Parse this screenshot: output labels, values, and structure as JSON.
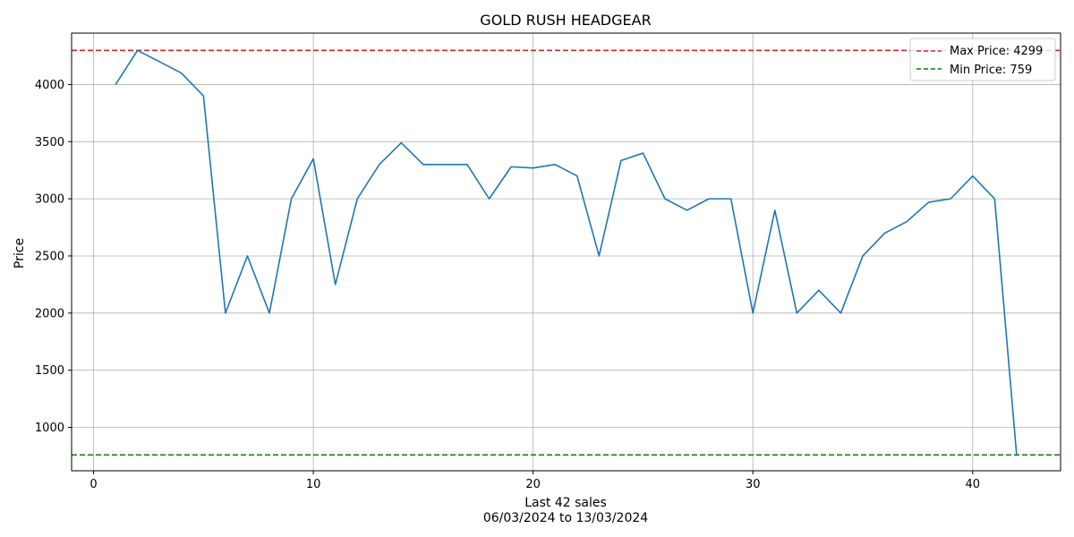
{
  "chart_data": {
    "type": "line",
    "title": "GOLD RUSH HEADGEAR",
    "xlabel": "Last 42 sales",
    "xlabel_sub": "06/03/2024 to 13/03/2024",
    "ylabel": "Price",
    "xlim": [
      -1,
      44
    ],
    "ylim": [
      620,
      4450
    ],
    "xticks": [
      0,
      10,
      20,
      30,
      40
    ],
    "yticks": [
      1000,
      1500,
      2000,
      2500,
      3000,
      3500,
      4000
    ],
    "grid": true,
    "legend_position": "top-right",
    "series": [
      {
        "color": "#1f77b4",
        "x": [
          1,
          2,
          3,
          4,
          5,
          6,
          7,
          8,
          9,
          10,
          11,
          12,
          13,
          14,
          15,
          16,
          17,
          18,
          19,
          20,
          21,
          22,
          23,
          24,
          25,
          26,
          27,
          28,
          29,
          30,
          31,
          32,
          33,
          34,
          35,
          36,
          37,
          38,
          39,
          40,
          41,
          42
        ],
        "values": [
          4000,
          4299,
          4200,
          4100,
          3900,
          2000,
          2500,
          2000,
          3000,
          3350,
          2250,
          3000,
          3300,
          3490,
          3300,
          3300,
          3300,
          3000,
          3280,
          3270,
          3300,
          3200,
          2500,
          3335,
          3400,
          3000,
          2900,
          3000,
          3000,
          2000,
          2900,
          2000,
          2200,
          2000,
          2500,
          2700,
          2800,
          2970,
          3000,
          3200,
          3000,
          759
        ]
      }
    ],
    "reference_lines": [
      {
        "name": "Max Price: 4299",
        "value": 4299,
        "color": "#d62728",
        "style": "dashed"
      },
      {
        "name": "Min Price: 759",
        "value": 759,
        "color": "#008000",
        "style": "dashed"
      }
    ]
  }
}
